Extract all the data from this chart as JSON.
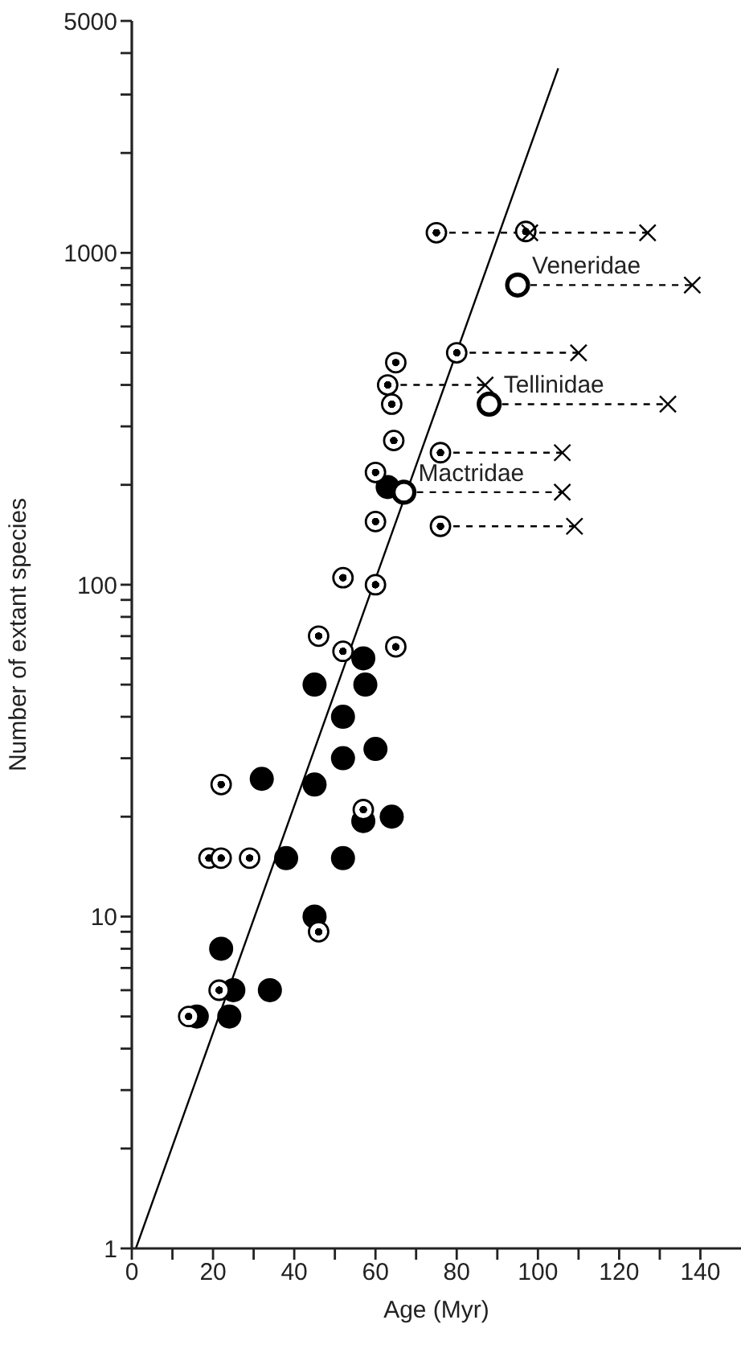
{
  "chart_data": {
    "type": "scatter",
    "xlabel": "Age (Myr)",
    "ylabel": "Number of extant species",
    "log": "y",
    "grid": false,
    "legend": false,
    "xlim": [
      0,
      150
    ],
    "xticks": [
      0,
      {
        "value": 10,
        "label": null
      },
      20,
      {
        "value": 30,
        "label": null
      },
      40,
      {
        "value": 50,
        "label": null
      },
      60,
      {
        "value": 70,
        "label": null
      },
      80,
      {
        "value": 90,
        "label": null
      },
      100,
      {
        "value": 110,
        "label": null
      },
      120,
      {
        "value": 130,
        "label": null
      },
      140
    ],
    "ylim": [
      1,
      5000
    ],
    "yticks": [
      1,
      {
        "value": 2,
        "label": null
      },
      {
        "value": 3,
        "label": null
      },
      {
        "value": 4,
        "label": null
      },
      {
        "value": 5,
        "label": null
      },
      {
        "value": 6,
        "label": null
      },
      {
        "value": 7,
        "label": null
      },
      {
        "value": 8,
        "label": null
      },
      {
        "value": 9,
        "label": null
      },
      10,
      {
        "value": 20,
        "label": null
      },
      {
        "value": 30,
        "label": null
      },
      {
        "value": 40,
        "label": null
      },
      {
        "value": 50,
        "label": null
      },
      {
        "value": 60,
        "label": null
      },
      {
        "value": 70,
        "label": null
      },
      {
        "value": 80,
        "label": null
      },
      {
        "value": 90,
        "label": null
      },
      100,
      {
        "value": 200,
        "label": null
      },
      {
        "value": 300,
        "label": null
      },
      {
        "value": 400,
        "label": null
      },
      {
        "value": 500,
        "label": null
      },
      {
        "value": 600,
        "label": null
      },
      {
        "value": 700,
        "label": null
      },
      {
        "value": 800,
        "label": null
      },
      {
        "value": 900,
        "label": null
      },
      1000,
      {
        "value": 2000,
        "label": null
      },
      {
        "value": 3000,
        "label": null
      },
      {
        "value": 4000,
        "label": null
      },
      5000
    ],
    "series": [
      {
        "type": "line",
        "color": "#000000",
        "line_style": "solid",
        "x": [
          1,
          105
        ],
        "values": [
          1,
          3600
        ]
      },
      {
        "type": "line",
        "color": "#000000",
        "line_style": "dashed",
        "x": [
          75,
          127
        ],
        "values": [
          1150,
          1150
        ]
      },
      {
        "type": "line",
        "color": "#000000",
        "line_style": "dashed",
        "x": [
          95,
          138
        ],
        "values": [
          800,
          800
        ]
      },
      {
        "type": "line",
        "color": "#000000",
        "line_style": "dashed",
        "x": [
          80,
          110
        ],
        "values": [
          500,
          500
        ]
      },
      {
        "type": "line",
        "color": "#000000",
        "line_style": "dashed",
        "x": [
          63,
          87
        ],
        "values": [
          400,
          400
        ]
      },
      {
        "type": "line",
        "color": "#000000",
        "line_style": "dashed",
        "x": [
          88,
          132
        ],
        "values": [
          350,
          350
        ]
      },
      {
        "type": "line",
        "color": "#000000",
        "line_style": "dashed",
        "x": [
          76,
          106
        ],
        "values": [
          250,
          250
        ]
      },
      {
        "type": "line",
        "color": "#000000",
        "line_style": "dashed",
        "x": [
          67,
          106
        ],
        "values": [
          190,
          190
        ]
      },
      {
        "type": "line",
        "color": "#000000",
        "line_style": "dashed",
        "x": [
          76,
          109
        ],
        "values": [
          150,
          150
        ]
      },
      {
        "color": "#000000",
        "marker": "circle",
        "x": [
          63,
          57,
          45,
          57.5,
          52,
          60,
          52,
          32,
          45,
          57,
          64,
          38,
          52,
          45,
          22,
          25,
          34,
          16,
          24
        ],
        "values": [
          197,
          60,
          50,
          50,
          40,
          32,
          30,
          26,
          25,
          19.4,
          20,
          15,
          15,
          10,
          8,
          6,
          6,
          5,
          5
        ]
      },
      {
        "color": "#000000",
        "marker": "circle",
        "x": [
          75,
          97,
          80,
          65,
          63,
          64,
          64.5,
          76,
          60,
          60,
          76,
          52,
          60,
          46,
          52,
          65,
          22,
          57,
          19,
          22,
          29,
          46,
          21.5,
          14
        ],
        "values": [
          1150,
          1160,
          500,
          467,
          400,
          350,
          272,
          250,
          218,
          155,
          150,
          105,
          100,
          70,
          63,
          65,
          25,
          21,
          15,
          15,
          15,
          9,
          6,
          5
        ]
      },
      {
        "color": "#000000",
        "marker": "circle",
        "x": [
          95,
          88,
          67
        ],
        "values": [
          800,
          350,
          190
        ]
      },
      {
        "color": "#000000",
        "marker": "cross",
        "x": [
          98,
          127,
          138,
          110,
          87,
          132,
          106,
          106,
          109
        ],
        "values": [
          1150,
          1150,
          800,
          500,
          400,
          350,
          250,
          190,
          150
        ]
      }
    ],
    "annotations": [
      {
        "text": "Veneridae",
        "x": 95,
        "y": 800
      },
      {
        "text": "Tellinidae",
        "x": 88,
        "y": 350
      },
      {
        "text": "Mactridae",
        "x": 67,
        "y": 190
      }
    ]
  }
}
